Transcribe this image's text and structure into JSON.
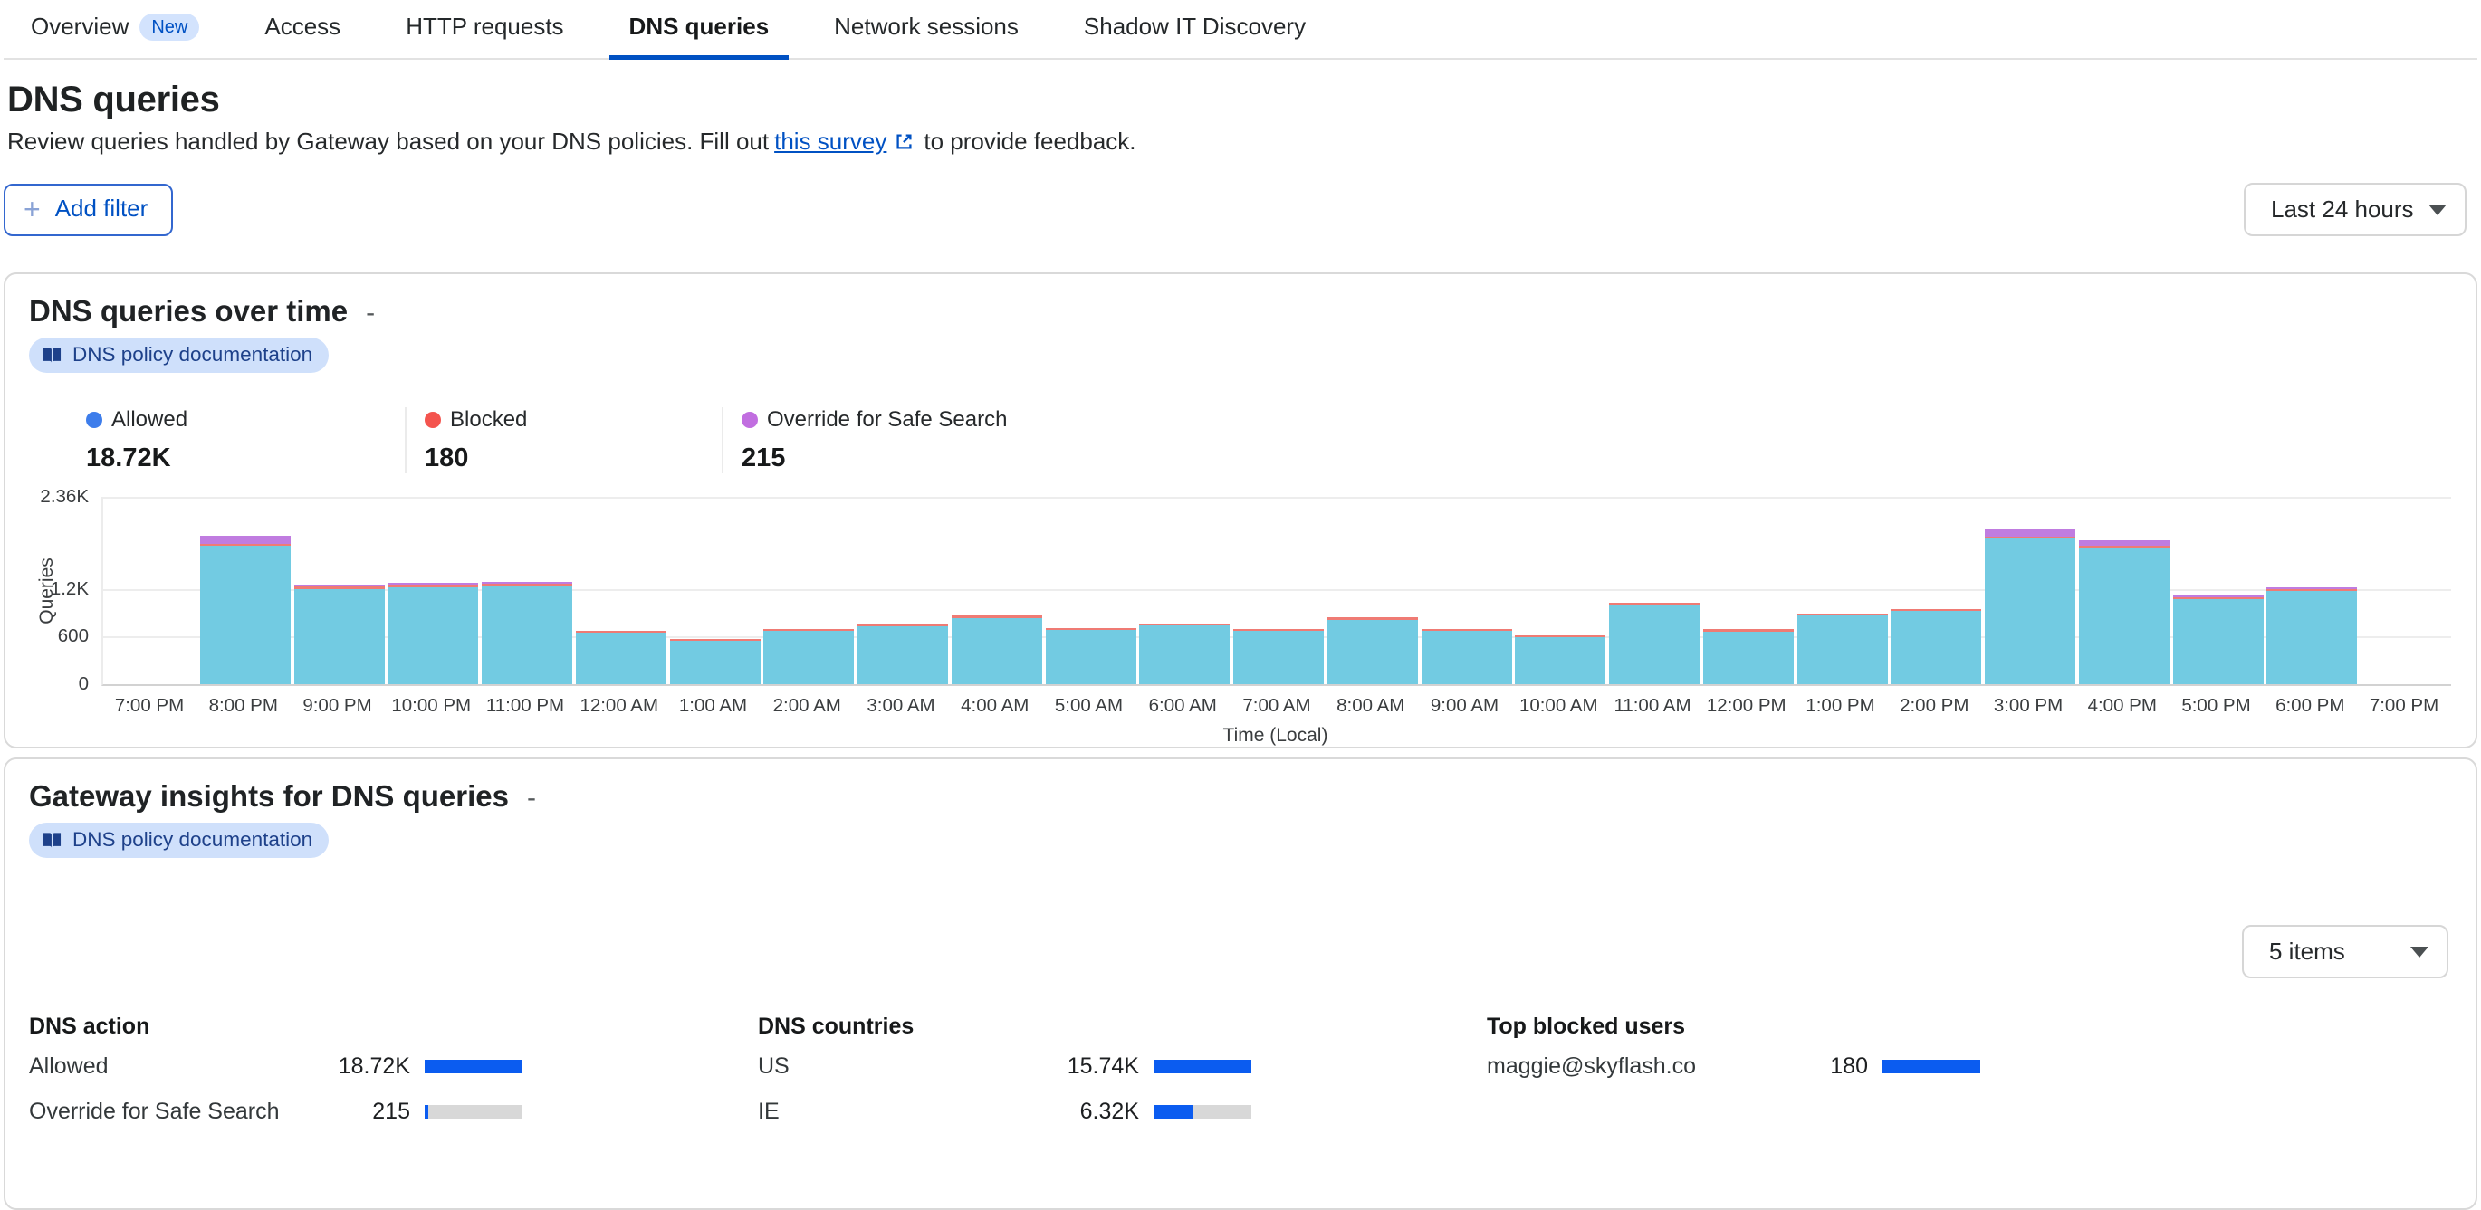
{
  "tabs": {
    "items": [
      {
        "label": "Overview",
        "badge": "New",
        "active": false
      },
      {
        "label": "Access",
        "active": false
      },
      {
        "label": "HTTP requests",
        "active": false
      },
      {
        "label": "DNS queries",
        "active": true
      },
      {
        "label": "Network sessions",
        "active": false
      },
      {
        "label": "Shadow IT Discovery",
        "active": false
      }
    ]
  },
  "header": {
    "title": "DNS queries",
    "description_prefix": "Review queries handled by Gateway based on your DNS policies. Fill out",
    "survey_link_text": "this survey",
    "description_suffix": "to provide feedback."
  },
  "filters": {
    "add_filter_label": "Add filter",
    "time_range_value": "Last 24 hours"
  },
  "chart_card": {
    "title": "DNS queries over time",
    "collapse_label": "-",
    "doc_badge_label": "DNS policy documentation",
    "legend": [
      {
        "label": "Allowed",
        "value": "18.72K",
        "color": "#3d7deb"
      },
      {
        "label": "Blocked",
        "value": "180",
        "color": "#f4544e"
      },
      {
        "label": "Override for Safe Search",
        "value": "215",
        "color": "#c16ee0"
      }
    ],
    "chart_data": {
      "type": "bar",
      "stacked": true,
      "title": "DNS queries over time",
      "xlabel": "Time (Local)",
      "ylabel": "Queries",
      "ylim": [
        0,
        2360
      ],
      "y_ticks": [
        "0",
        "600",
        "1.2K",
        "2.36K"
      ],
      "y_tick_values": [
        0,
        600,
        1200,
        2360
      ],
      "grid": true,
      "legend_position": "top",
      "series_colors": {
        "allowed": "#72cbe2",
        "blocked": "#ef7b74",
        "override": "#c07ce0"
      },
      "x_ticks": [
        "7:00 PM",
        "8:00 PM",
        "9:00 PM",
        "10:00 PM",
        "11:00 PM",
        "12:00 AM",
        "1:00 AM",
        "2:00 AM",
        "3:00 AM",
        "4:00 AM",
        "5:00 AM",
        "6:00 AM",
        "7:00 AM",
        "8:00 AM",
        "9:00 AM",
        "10:00 AM",
        "11:00 AM",
        "12:00 PM",
        "1:00 PM",
        "2:00 PM",
        "3:00 PM",
        "4:00 PM",
        "5:00 PM",
        "6:00 PM",
        "7:00 PM"
      ],
      "bars": [
        {
          "x": "8:00 PM",
          "allowed": 1740,
          "blocked": 8,
          "override": 100
        },
        {
          "x": "9:00 PM",
          "allowed": 1200,
          "blocked": 5,
          "override": 8
        },
        {
          "x": "10:00 PM",
          "allowed": 1225,
          "blocked": 5,
          "override": 5
        },
        {
          "x": "11:00 PM",
          "allowed": 1235,
          "blocked": 5,
          "override": 10
        },
        {
          "x": "12:00 AM",
          "allowed": 645,
          "blocked": 12,
          "override": 0
        },
        {
          "x": "1:00 AM",
          "allowed": 545,
          "blocked": 8,
          "override": 0
        },
        {
          "x": "2:00 AM",
          "allowed": 668,
          "blocked": 12,
          "override": 0
        },
        {
          "x": "3:00 AM",
          "allowed": 728,
          "blocked": 8,
          "override": 0
        },
        {
          "x": "4:00 AM",
          "allowed": 838,
          "blocked": 10,
          "override": 0
        },
        {
          "x": "5:00 AM",
          "allowed": 682,
          "blocked": 8,
          "override": 0
        },
        {
          "x": "6:00 AM",
          "allowed": 740,
          "blocked": 8,
          "override": 0
        },
        {
          "x": "7:00 AM",
          "allowed": 672,
          "blocked": 8,
          "override": 0
        },
        {
          "x": "8:00 AM",
          "allowed": 810,
          "blocked": 10,
          "override": 0
        },
        {
          "x": "9:00 AM",
          "allowed": 672,
          "blocked": 8,
          "override": 0
        },
        {
          "x": "10:00 AM",
          "allowed": 592,
          "blocked": 8,
          "override": 0
        },
        {
          "x": "11:00 AM",
          "allowed": 995,
          "blocked": 7,
          "override": 0
        },
        {
          "x": "12:00 PM",
          "allowed": 662,
          "blocked": 8,
          "override": 0
        },
        {
          "x": "1:00 PM",
          "allowed": 862,
          "blocked": 8,
          "override": 0
        },
        {
          "x": "2:00 PM",
          "allowed": 922,
          "blocked": 8,
          "override": 0
        },
        {
          "x": "3:00 PM",
          "allowed": 1830,
          "blocked": 8,
          "override": 92
        },
        {
          "x": "4:00 PM",
          "allowed": 1712,
          "blocked": 8,
          "override": 70
        },
        {
          "x": "5:00 PM",
          "allowed": 1068,
          "blocked": 5,
          "override": 12
        },
        {
          "x": "6:00 PM",
          "allowed": 1172,
          "blocked": 8,
          "override": 5
        }
      ]
    }
  },
  "insights_card": {
    "title": "Gateway insights for DNS queries",
    "collapse_label": "-",
    "doc_badge_label": "DNS policy documentation",
    "items_select_value": "5 items",
    "bar_color": "#0b5cf0",
    "track_color": "#d8d8d8",
    "columns": [
      {
        "header": "DNS action",
        "rows": [
          {
            "label": "Allowed",
            "value": 18720,
            "display": "18.72K"
          },
          {
            "label": "Override for Safe Search",
            "value": 215,
            "display": "215"
          }
        ]
      },
      {
        "header": "DNS countries",
        "rows": [
          {
            "label": "US",
            "value": 15740,
            "display": "15.74K"
          },
          {
            "label": "IE",
            "value": 6320,
            "display": "6.32K"
          }
        ]
      },
      {
        "header": "Top blocked users",
        "rows": [
          {
            "label": "maggie@skyflash.co",
            "value": 180,
            "display": "180"
          }
        ]
      }
    ]
  }
}
